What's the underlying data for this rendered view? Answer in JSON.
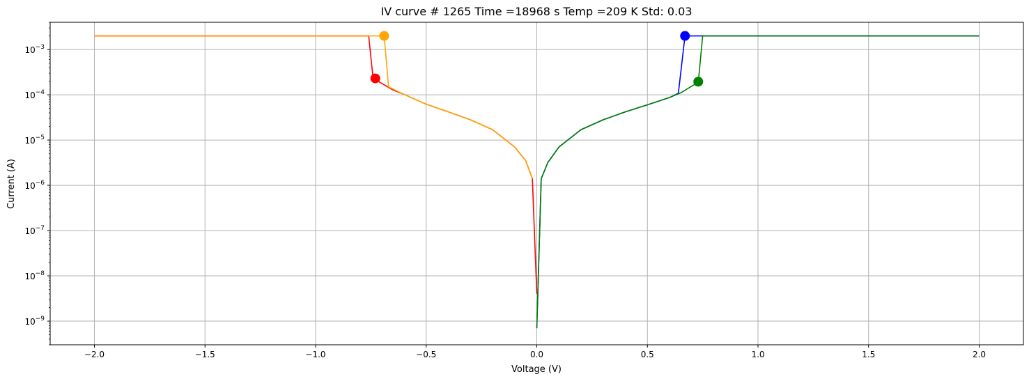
{
  "chart_data": {
    "type": "line",
    "title": "IV curve # 1265  Time =18968 s  Temp =209 K Std: 0.03",
    "xlabel": "Voltage (V)",
    "ylabel": "Current (A)",
    "xlim": [
      -2.2,
      2.2
    ],
    "ylim": [
      3e-10,
      0.004
    ],
    "yscale": "log",
    "grid": true,
    "x_ticks": [
      -2.0,
      -1.5,
      -1.0,
      -0.5,
      0.0,
      0.5,
      1.0,
      1.5,
      2.0
    ],
    "x_tick_labels": [
      "−2.0",
      "−1.5",
      "−1.0",
      "−0.5",
      "0.0",
      "0.5",
      "1.0",
      "1.5",
      "2.0"
    ],
    "y_ticks": [
      1e-09,
      1e-08,
      1e-07,
      1e-06,
      1e-05,
      0.0001,
      0.001
    ],
    "y_tick_labels": [
      {
        "base": "10",
        "exp": "−9"
      },
      {
        "base": "10",
        "exp": "−8"
      },
      {
        "base": "10",
        "exp": "−7"
      },
      {
        "base": "10",
        "exp": "−6"
      },
      {
        "base": "10",
        "exp": "−5"
      },
      {
        "base": "10",
        "exp": "−4"
      },
      {
        "base": "10",
        "exp": "−3"
      }
    ],
    "series": [
      {
        "color": "#0000ff",
        "x": [
          0.0,
          0.02,
          0.05,
          0.1,
          0.2,
          0.3,
          0.4,
          0.5,
          0.6,
          0.64,
          0.67,
          1.0,
          1.5,
          2.0
        ],
        "y": [
          7e-10,
          1.4e-06,
          3.2e-06,
          7e-06,
          1.7e-05,
          2.8e-05,
          4.2e-05,
          6e-05,
          8.7e-05,
          0.000108,
          0.002,
          0.002,
          0.002,
          0.002
        ]
      },
      {
        "color": "#008000",
        "x": [
          0.0,
          0.02,
          0.05,
          0.1,
          0.2,
          0.3,
          0.4,
          0.5,
          0.6,
          0.65,
          0.73,
          0.75,
          1.0,
          1.5,
          2.0
        ],
        "y": [
          7e-10,
          1.4e-06,
          3.2e-06,
          7e-06,
          1.7e-05,
          2.8e-05,
          4.2e-05,
          6e-05,
          8.7e-05,
          0.00011,
          0.00019,
          0.002,
          0.002,
          0.002,
          0.002
        ]
      },
      {
        "color": "#ff0000",
        "x": [
          -2.0,
          -1.5,
          -1.0,
          -0.76,
          -0.74,
          -0.65,
          -0.6,
          -0.5,
          -0.4,
          -0.3,
          -0.2,
          -0.1,
          -0.05,
          -0.02,
          0.0
        ],
        "y": [
          0.002,
          0.002,
          0.002,
          0.002,
          0.00023,
          0.000128,
          0.000102,
          6.2e-05,
          4.2e-05,
          2.8e-05,
          1.7e-05,
          7e-06,
          3.5e-06,
          1.4e-06,
          4e-09
        ]
      },
      {
        "color": "#ffa500",
        "x": [
          -2.0,
          -1.5,
          -1.0,
          -0.69,
          -0.67,
          -0.6,
          -0.5,
          -0.4,
          -0.3,
          -0.2,
          -0.1,
          -0.05,
          -0.02
        ],
        "y": [
          0.002,
          0.002,
          0.002,
          0.002,
          0.00015,
          0.000102,
          6.2e-05,
          4.2e-05,
          2.8e-05,
          1.7e-05,
          7e-06,
          3.5e-06,
          1.4e-06
        ]
      }
    ],
    "markers": [
      {
        "color": "#ffa500",
        "x": -0.69,
        "y": 0.002
      },
      {
        "color": "#ff0000",
        "x": -0.73,
        "y": 0.00023
      },
      {
        "color": "#0000ff",
        "x": 0.67,
        "y": 0.002
      },
      {
        "color": "#008000",
        "x": 0.73,
        "y": 0.000195
      }
    ],
    "grid_color": "#b0b0b0"
  }
}
